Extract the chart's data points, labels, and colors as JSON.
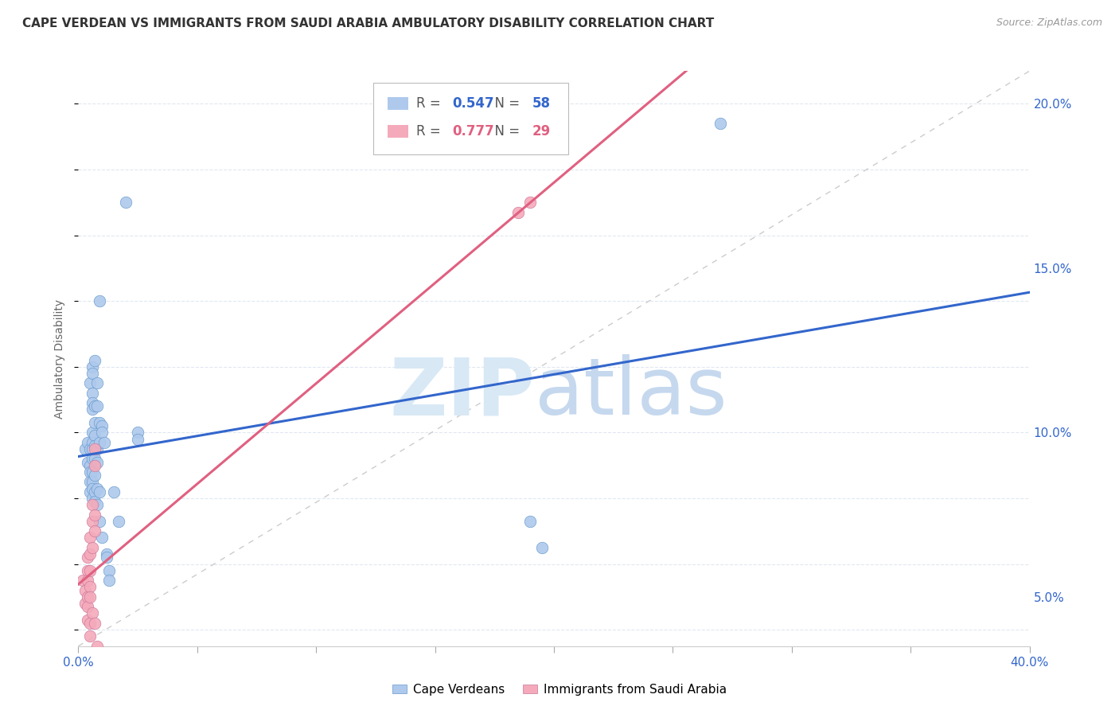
{
  "title": "CAPE VERDEAN VS IMMIGRANTS FROM SAUDI ARABIA AMBULATORY DISABILITY CORRELATION CHART",
  "source": "Source: ZipAtlas.com",
  "ylabel": "Ambulatory Disability",
  "xmin": 0.0,
  "xmax": 0.4,
  "ymin": 0.035,
  "ymax": 0.21,
  "legend1_label": "Cape Verdeans",
  "legend2_label": "Immigrants from Saudi Arabia",
  "R1": 0.547,
  "N1": 58,
  "R2": 0.777,
  "N2": 29,
  "blue_color": "#AEC9EC",
  "pink_color": "#F4AABB",
  "blue_line_color": "#3366CC",
  "pink_line_color": "#E06080",
  "ref_line_color": "#CCCCCC",
  "grid_color": "#E0E8F0",
  "blue_scatter": [
    [
      0.003,
      0.095
    ],
    [
      0.004,
      0.097
    ],
    [
      0.004,
      0.091
    ],
    [
      0.005,
      0.115
    ],
    [
      0.005,
      0.095
    ],
    [
      0.005,
      0.09
    ],
    [
      0.005,
      0.088
    ],
    [
      0.005,
      0.085
    ],
    [
      0.005,
      0.082
    ],
    [
      0.006,
      0.12
    ],
    [
      0.006,
      0.118
    ],
    [
      0.006,
      0.112
    ],
    [
      0.006,
      0.109
    ],
    [
      0.006,
      0.107
    ],
    [
      0.006,
      0.1
    ],
    [
      0.006,
      0.097
    ],
    [
      0.006,
      0.095
    ],
    [
      0.006,
      0.092
    ],
    [
      0.006,
      0.088
    ],
    [
      0.006,
      0.085
    ],
    [
      0.006,
      0.083
    ],
    [
      0.006,
      0.08
    ],
    [
      0.007,
      0.122
    ],
    [
      0.007,
      0.108
    ],
    [
      0.007,
      0.103
    ],
    [
      0.007,
      0.099
    ],
    [
      0.007,
      0.096
    ],
    [
      0.007,
      0.092
    ],
    [
      0.007,
      0.087
    ],
    [
      0.007,
      0.082
    ],
    [
      0.007,
      0.079
    ],
    [
      0.008,
      0.115
    ],
    [
      0.008,
      0.108
    ],
    [
      0.008,
      0.095
    ],
    [
      0.008,
      0.091
    ],
    [
      0.008,
      0.083
    ],
    [
      0.008,
      0.078
    ],
    [
      0.009,
      0.14
    ],
    [
      0.009,
      0.103
    ],
    [
      0.009,
      0.097
    ],
    [
      0.009,
      0.082
    ],
    [
      0.009,
      0.073
    ],
    [
      0.01,
      0.102
    ],
    [
      0.01,
      0.1
    ],
    [
      0.01,
      0.068
    ],
    [
      0.011,
      0.097
    ],
    [
      0.012,
      0.063
    ],
    [
      0.012,
      0.062
    ],
    [
      0.013,
      0.058
    ],
    [
      0.013,
      0.055
    ],
    [
      0.015,
      0.082
    ],
    [
      0.017,
      0.073
    ],
    [
      0.02,
      0.17
    ],
    [
      0.025,
      0.1
    ],
    [
      0.025,
      0.098
    ],
    [
      0.19,
      0.073
    ],
    [
      0.27,
      0.194
    ],
    [
      0.195,
      0.065
    ]
  ],
  "pink_scatter": [
    [
      0.002,
      0.055
    ],
    [
      0.003,
      0.052
    ],
    [
      0.003,
      0.048
    ],
    [
      0.004,
      0.062
    ],
    [
      0.004,
      0.058
    ],
    [
      0.004,
      0.055
    ],
    [
      0.004,
      0.05
    ],
    [
      0.004,
      0.047
    ],
    [
      0.004,
      0.043
    ],
    [
      0.005,
      0.068
    ],
    [
      0.005,
      0.063
    ],
    [
      0.005,
      0.058
    ],
    [
      0.005,
      0.053
    ],
    [
      0.005,
      0.05
    ],
    [
      0.005,
      0.042
    ],
    [
      0.005,
      0.038
    ],
    [
      0.006,
      0.078
    ],
    [
      0.006,
      0.073
    ],
    [
      0.006,
      0.065
    ],
    [
      0.006,
      0.045
    ],
    [
      0.007,
      0.095
    ],
    [
      0.007,
      0.09
    ],
    [
      0.007,
      0.075
    ],
    [
      0.007,
      0.07
    ],
    [
      0.007,
      0.042
    ],
    [
      0.008,
      0.035
    ],
    [
      0.012,
      0.032
    ],
    [
      0.19,
      0.17
    ],
    [
      0.185,
      0.167
    ]
  ]
}
